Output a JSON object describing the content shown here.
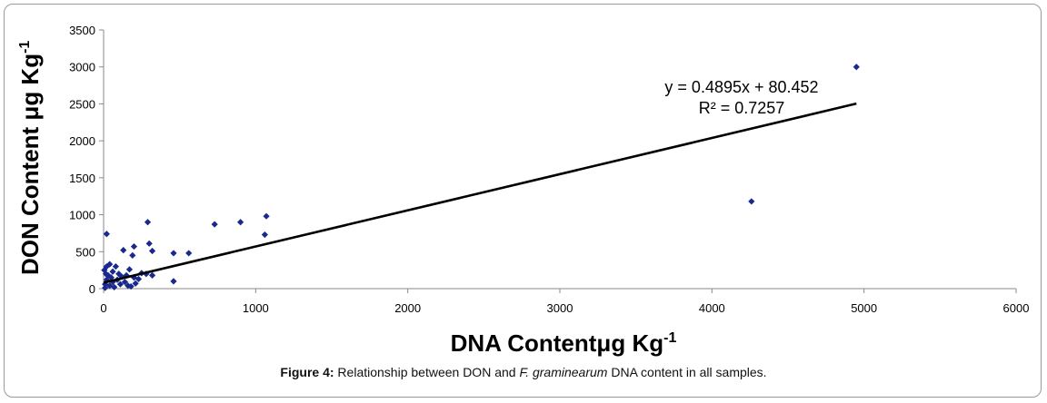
{
  "chart_data": {
    "type": "scatter",
    "ylabel_main": "DON Content μg Kg",
    "ylabel_sup": "-1",
    "xlabel_main": "DNA Contentμg Kg",
    "xlabel_sup": "-1",
    "xlim": [
      0,
      6000
    ],
    "ylim": [
      0,
      3500
    ],
    "xticks": [
      "0",
      "1000",
      "2000",
      "3000",
      "4000",
      "5000",
      "6000"
    ],
    "yticks": [
      "0",
      "500",
      "1000",
      "1500",
      "2000",
      "2500",
      "3000",
      "3500"
    ],
    "marker_color": "#1a2a8c",
    "points": [
      [
        4950,
        3000
      ],
      [
        4260,
        1180
      ],
      [
        1070,
        980
      ],
      [
        1060,
        730
      ],
      [
        900,
        900
      ],
      [
        730,
        870
      ],
      [
        290,
        900
      ],
      [
        300,
        610
      ],
      [
        320,
        510
      ],
      [
        200,
        570
      ],
      [
        190,
        450
      ],
      [
        560,
        480
      ],
      [
        460,
        480
      ],
      [
        460,
        100
      ],
      [
        20,
        740
      ],
      [
        130,
        520
      ],
      [
        170,
        260
      ],
      [
        280,
        200
      ],
      [
        320,
        180
      ],
      [
        40,
        330
      ],
      [
        80,
        300
      ],
      [
        20,
        300
      ],
      [
        60,
        230
      ],
      [
        100,
        200
      ],
      [
        150,
        180
      ],
      [
        120,
        160
      ],
      [
        200,
        150
      ],
      [
        230,
        130
      ],
      [
        250,
        210
      ],
      [
        210,
        70
      ],
      [
        180,
        30
      ],
      [
        90,
        120
      ],
      [
        60,
        90
      ],
      [
        30,
        180
      ],
      [
        10,
        60
      ],
      [
        40,
        40
      ],
      [
        70,
        20
      ],
      [
        10,
        10
      ],
      [
        20,
        120
      ],
      [
        50,
        150
      ],
      [
        110,
        60
      ],
      [
        140,
        90
      ],
      [
        160,
        40
      ],
      [
        5,
        250
      ],
      [
        15,
        200
      ]
    ],
    "trendline": {
      "slope": 0.4895,
      "intercept": 80.452,
      "x_from": 0,
      "x_to": 4950
    },
    "equation": "y = 0.4895x + 80.452",
    "r2": "R² = 0.7257"
  },
  "caption": {
    "label": "Figure 4:",
    "text_before": " Relationship between DON and ",
    "species": "F. graminearum",
    "text_after": " DNA content in all samples."
  }
}
